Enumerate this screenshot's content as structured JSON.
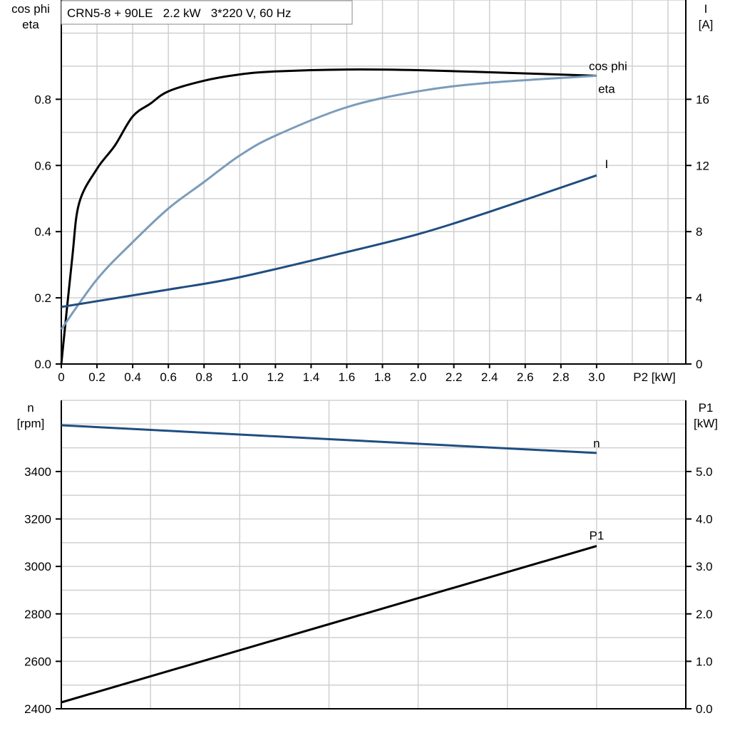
{
  "chart_data": [
    {
      "type": "line",
      "title": "CRN5-8 + 90LE   2.2 kW   3*220 V, 60 Hz",
      "xlabel": "P2 [kW]",
      "ylabel_left": [
        "cos phi",
        "eta"
      ],
      "ylabel_right": [
        "I",
        "[A]"
      ],
      "xlim": [
        0,
        3.5
      ],
      "ylim_left": [
        0,
        1.1
      ],
      "ylim_right": [
        0,
        22
      ],
      "x_ticks": [
        "0",
        "0.2",
        "0.4",
        "0.6",
        "0.8",
        "1.0",
        "1.2",
        "1.4",
        "1.6",
        "1.8",
        "2.0",
        "2.2",
        "2.4",
        "2.6",
        "2.8",
        "3.0"
      ],
      "y_left_ticks": [
        "0.0",
        "0.2",
        "0.4",
        "0.6",
        "0.8"
      ],
      "y_right_ticks": [
        "0",
        "4",
        "8",
        "12",
        "16"
      ],
      "grid": true,
      "series": [
        {
          "name": "eta",
          "axis": "left",
          "color": "#000000",
          "x": [
            0,
            0.06,
            0.1,
            0.2,
            0.3,
            0.4,
            0.5,
            0.6,
            0.8,
            1.0,
            1.2,
            1.6,
            2.0,
            2.5,
            3.0
          ],
          "y": [
            0,
            0.314,
            0.486,
            0.59,
            0.66,
            0.748,
            0.787,
            0.824,
            0.856,
            0.875,
            0.884,
            0.89,
            0.888,
            0.88,
            0.871
          ]
        },
        {
          "name": "cos phi",
          "axis": "left",
          "color": "#7a9cbb",
          "x": [
            0,
            0.2,
            0.4,
            0.6,
            0.8,
            1.0,
            1.2,
            1.6,
            2.0,
            2.4,
            3.0
          ],
          "y": [
            0.105,
            0.256,
            0.368,
            0.47,
            0.55,
            0.63,
            0.69,
            0.776,
            0.824,
            0.85,
            0.871
          ]
        },
        {
          "name": "I",
          "axis": "right",
          "color": "#1f4e80",
          "x": [
            0,
            0.6,
            1.0,
            1.6,
            2.0,
            2.4,
            3.0
          ],
          "y": [
            3.45,
            4.5,
            5.25,
            6.77,
            7.85,
            9.2,
            11.4
          ]
        }
      ]
    },
    {
      "type": "line",
      "xlim": [
        0,
        3.5
      ],
      "ylabel_left": [
        "n",
        "[rpm]"
      ],
      "ylabel_right": [
        "P1",
        "[kW]"
      ],
      "ylim_left": [
        2400,
        3700
      ],
      "ylim_right": [
        0,
        6.5
      ],
      "y_left_ticks": [
        "2400",
        "2600",
        "2800",
        "3000",
        "3200",
        "3400"
      ],
      "y_right_ticks": [
        "0.0",
        "1.0",
        "2.0",
        "3.0",
        "4.0",
        "5.0"
      ],
      "grid": true,
      "series": [
        {
          "name": "n",
          "axis": "left",
          "color": "#1f4e80",
          "x": [
            0,
            3.0
          ],
          "y": [
            3595,
            3478
          ]
        },
        {
          "name": "P1",
          "axis": "right",
          "color": "#000000",
          "x": [
            0,
            3.0
          ],
          "y": [
            0.135,
            3.43
          ]
        }
      ]
    }
  ]
}
